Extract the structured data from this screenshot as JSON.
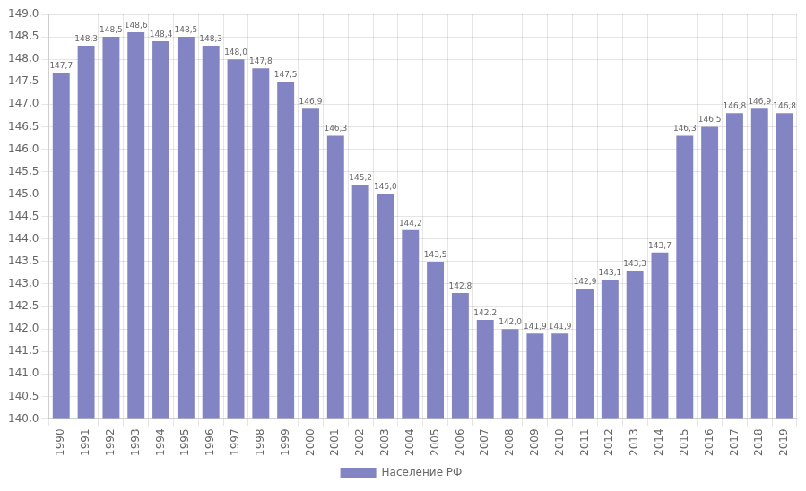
{
  "chart_data": {
    "type": "bar",
    "categories": [
      "1990",
      "1991",
      "1992",
      "1993",
      "1994",
      "1995",
      "1996",
      "1997",
      "1998",
      "1999",
      "2000",
      "2001",
      "2002",
      "2003",
      "2004",
      "2005",
      "2006",
      "2007",
      "2008",
      "2009",
      "2010",
      "2011",
      "2012",
      "2013",
      "2014",
      "2015",
      "2016",
      "2017",
      "2018",
      "2019"
    ],
    "series": [
      {
        "name": "Население РФ",
        "color": "#8284c4",
        "values": [
          147.7,
          148.3,
          148.5,
          148.6,
          148.4,
          148.5,
          148.3,
          148.0,
          147.8,
          147.5,
          146.9,
          146.3,
          145.2,
          145.0,
          144.2,
          143.5,
          142.8,
          142.2,
          142.0,
          141.9,
          141.9,
          142.9,
          143.1,
          143.3,
          143.7,
          146.3,
          146.5,
          146.8,
          146.9,
          146.8
        ],
        "value_labels": [
          "147,7",
          "148,3",
          "148,5",
          "148,6",
          "148,4",
          "148,5",
          "148,3",
          "148,0",
          "147,8",
          "147,5",
          "146,9",
          "146,3",
          "145,2",
          "145,0",
          "144,2",
          "143,5",
          "142,8",
          "142,2",
          "142,0",
          "141,9",
          "141,9",
          "142,9",
          "143,1",
          "143,3",
          "143,7",
          "146,3",
          "146,5",
          "146,8",
          "146,9",
          "146,8"
        ]
      }
    ],
    "ylim": [
      140.0,
      149.0
    ],
    "yticks": [
      {
        "value": 140.0,
        "label": "140,0"
      },
      {
        "value": 140.5,
        "label": "140,5"
      },
      {
        "value": 141.0,
        "label": "141,0"
      },
      {
        "value": 141.5,
        "label": "141,5"
      },
      {
        "value": 142.0,
        "label": "142,0"
      },
      {
        "value": 142.5,
        "label": "142,5"
      },
      {
        "value": 143.0,
        "label": "143,0"
      },
      {
        "value": 143.5,
        "label": "143,5"
      },
      {
        "value": 144.0,
        "label": "144,0"
      },
      {
        "value": 144.5,
        "label": "144,5"
      },
      {
        "value": 145.0,
        "label": "145,0"
      },
      {
        "value": 145.5,
        "label": "145,5"
      },
      {
        "value": 146.0,
        "label": "146,0"
      },
      {
        "value": 146.5,
        "label": "146,5"
      },
      {
        "value": 147.0,
        "label": "147,0"
      },
      {
        "value": 147.5,
        "label": "147,5"
      },
      {
        "value": 148.0,
        "label": "148,0"
      },
      {
        "value": 148.5,
        "label": "148,5"
      },
      {
        "value": 149.0,
        "label": "149,0"
      }
    ],
    "grid": true,
    "legend": "bottom",
    "data_labels": true
  }
}
